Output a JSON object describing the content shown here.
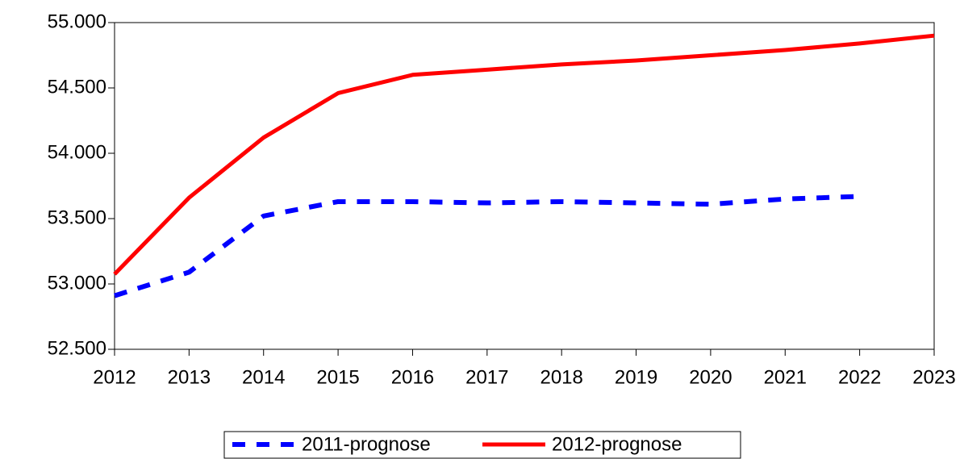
{
  "chart_data": {
    "type": "line",
    "x": [
      2012,
      2013,
      2014,
      2015,
      2016,
      2017,
      2018,
      2019,
      2020,
      2021,
      2022,
      2023
    ],
    "xlim": [
      2012,
      2023
    ],
    "xticks": [
      2012,
      2013,
      2014,
      2015,
      2016,
      2017,
      2018,
      2019,
      2020,
      2021,
      2022,
      2023
    ],
    "ylim": [
      52500,
      55000
    ],
    "yticks": [
      {
        "value": 52500,
        "label": "52.500"
      },
      {
        "value": 53000,
        "label": "53.000"
      },
      {
        "value": 53500,
        "label": "53.500"
      },
      {
        "value": 54000,
        "label": "54.000"
      },
      {
        "value": 54500,
        "label": "54.500"
      },
      {
        "value": 55000,
        "label": "55.000"
      }
    ],
    "series": [
      {
        "name": "2011-prognose",
        "color": "#0000ff",
        "dashed": true,
        "values": [
          52910,
          53090,
          53520,
          53630,
          53630,
          53620,
          53630,
          53620,
          53610,
          53650,
          53670,
          null
        ]
      },
      {
        "name": "2012-prognose",
        "color": "#ff0000",
        "dashed": false,
        "values": [
          53075,
          53660,
          54120,
          54460,
          54600,
          54640,
          54680,
          54710,
          54750,
          54790,
          54840,
          54900
        ]
      }
    ]
  }
}
